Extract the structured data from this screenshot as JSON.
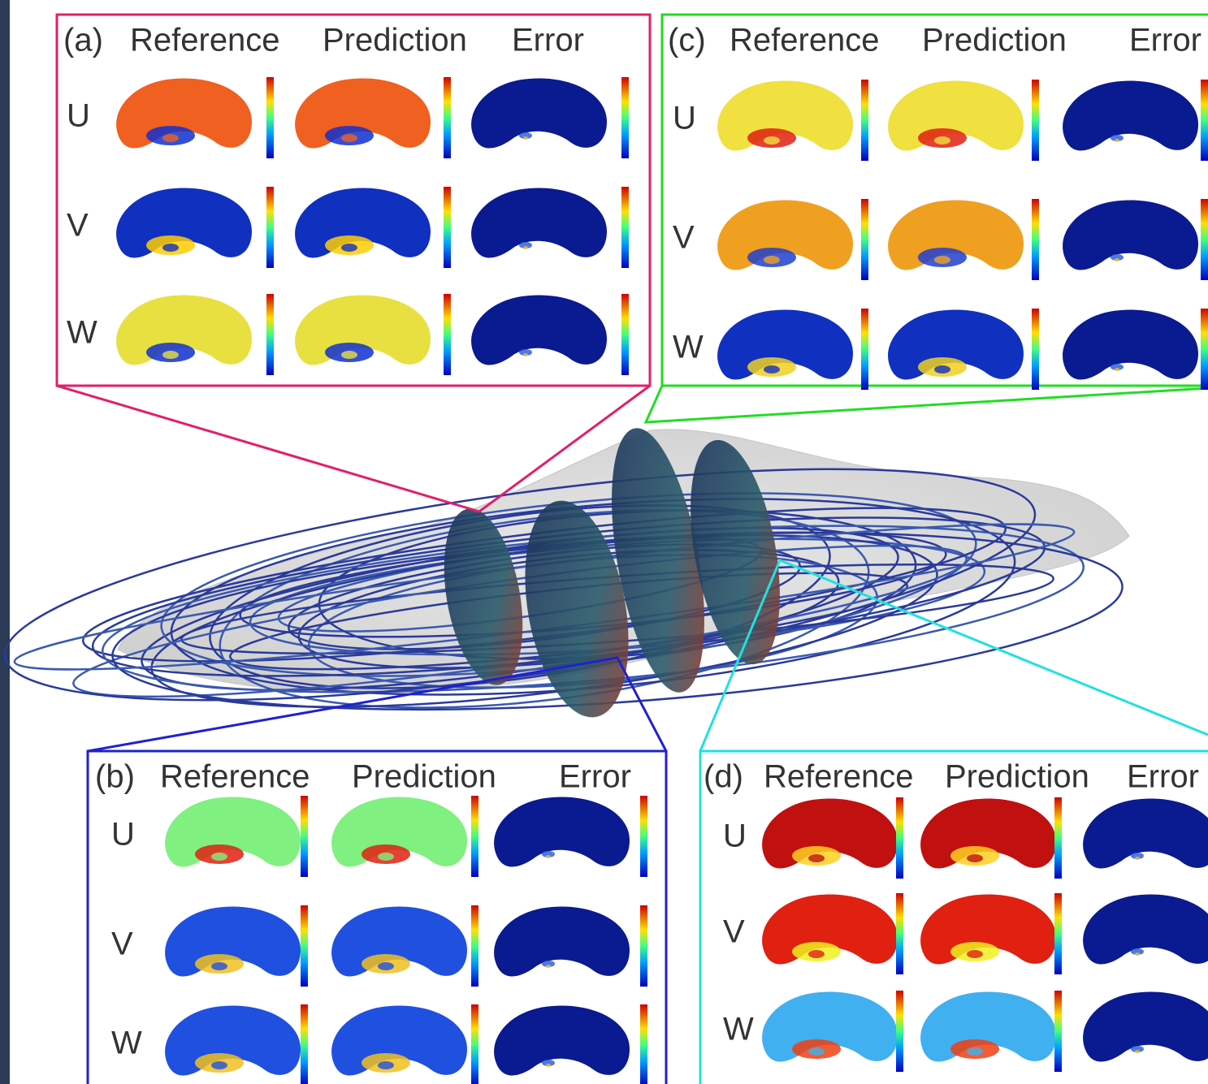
{
  "panels": [
    {
      "label": "(a)",
      "columns": [
        "Reference",
        "Prediction",
        "Error"
      ],
      "rows": [
        "U",
        "V",
        "W"
      ]
    },
    {
      "label": "(b)",
      "columns": [
        "Reference",
        "Prediction",
        "Error"
      ],
      "rows": [
        "U",
        "V",
        "W"
      ]
    },
    {
      "label": "(c)",
      "columns": [
        "Reference",
        "Prediction",
        "Error"
      ],
      "rows": [
        "U",
        "V",
        "W"
      ]
    },
    {
      "label": "(d)",
      "columns": [
        "Reference",
        "Prediction",
        "Error"
      ],
      "rows": [
        "U",
        "V",
        "W"
      ]
    }
  ]
}
